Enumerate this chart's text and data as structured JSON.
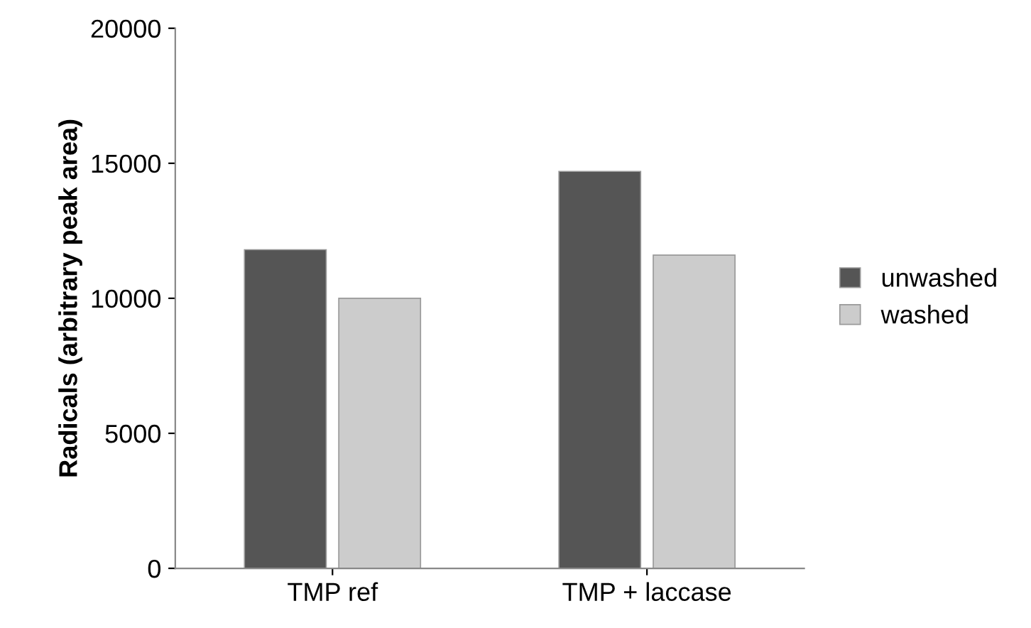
{
  "chart_data": {
    "type": "bar",
    "ylabel": "Radicals (arbitrary peak area)",
    "categories": [
      "TMP ref",
      "TMP + laccase"
    ],
    "series": [
      {
        "name": "unwashed",
        "color": "#555555",
        "values": [
          11800,
          14700
        ]
      },
      {
        "name": "washed",
        "color": "#cccccc",
        "values": [
          10000,
          11600
        ]
      }
    ],
    "ylim": [
      0,
      20000
    ],
    "yticks": [
      0,
      5000,
      10000,
      15000,
      20000
    ],
    "grid": false,
    "legend": "right"
  }
}
